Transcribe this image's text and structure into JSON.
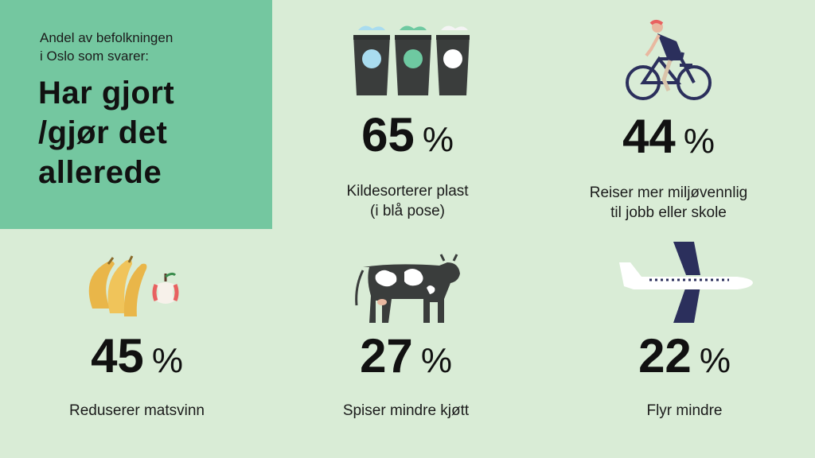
{
  "header": {
    "subtitle": "Andel av befolkningen\ni Oslo som svarer:",
    "title": "Har gjort\n/gjør det\nallerede"
  },
  "stats": [
    {
      "id": "plast",
      "value": "65",
      "unit": "%",
      "label": "Kildesorterer plast\n(i blå pose)",
      "icon": "recycling-bins-icon"
    },
    {
      "id": "reiser",
      "value": "44",
      "unit": "%",
      "label": "Reiser mer miljøvennlig\ntil jobb eller skole",
      "icon": "cyclist-icon"
    },
    {
      "id": "matsvinn",
      "value": "45",
      "unit": "%",
      "label": "Reduserer matsvinn",
      "icon": "food-waste-icon"
    },
    {
      "id": "kjott",
      "value": "27",
      "unit": "%",
      "label": "Spiser mindre kjøtt",
      "icon": "cow-icon"
    },
    {
      "id": "fly",
      "value": "22",
      "unit": "%",
      "label": "Flyr mindre",
      "icon": "airplane-icon"
    }
  ],
  "colors": {
    "background": "#d9ecd6",
    "header_box": "#74c7a0",
    "dark": "#3a3d3c",
    "navy": "#2b2f5c",
    "blue": "#a9dcef",
    "green": "#6ec9a1",
    "banana": "#e9b649",
    "apple": "#e86160"
  }
}
